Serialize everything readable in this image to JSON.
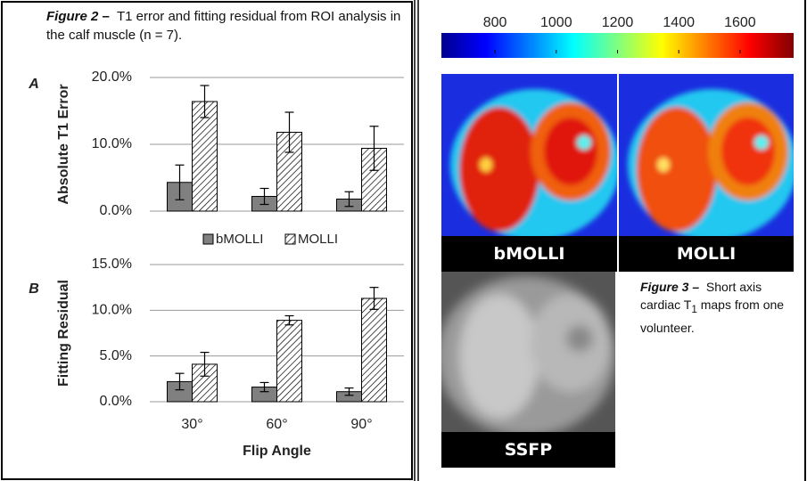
{
  "figure2": {
    "caption_label": "Figure 2 –",
    "caption_text": "T1 error and fitting residual from ROI analysis in the calf muscle (n = 7)."
  },
  "chart_data": [
    {
      "type": "bar",
      "panel": "A",
      "ylabel": "Absolute T1 Error",
      "categories": [
        null,
        null,
        null
      ],
      "series": [
        {
          "name": "bMOLLI",
          "color": "#808080",
          "hatch": false,
          "values": [
            4.3,
            2.2,
            1.8
          ],
          "errors": [
            2.6,
            1.2,
            1.1
          ]
        },
        {
          "name": "MOLLI",
          "color": "#ffffff",
          "hatch": true,
          "values": [
            16.4,
            11.8,
            9.4
          ],
          "errors": [
            2.4,
            3.0,
            3.3
          ]
        }
      ],
      "ylim": [
        0,
        20
      ],
      "yticks": [
        {
          "value": 0,
          "label": "0.0%"
        },
        {
          "value": 10,
          "label": "10.0%"
        },
        {
          "value": 20,
          "label": "20.0%"
        }
      ],
      "grid": true,
      "legend": "bottom"
    },
    {
      "type": "bar",
      "panel": "B",
      "ylabel": "Fitting Residual",
      "xlabel": "Flip Angle",
      "categories": [
        "30°",
        "60°",
        "90°"
      ],
      "series": [
        {
          "color": "#808080",
          "hatch": false,
          "values": [
            2.2,
            1.6,
            1.1
          ],
          "errors": [
            0.9,
            0.5,
            0.4
          ]
        },
        {
          "color": "#ffffff",
          "hatch": true,
          "values": [
            4.1,
            8.9,
            11.3
          ],
          "errors": [
            1.3,
            0.5,
            1.2
          ]
        }
      ],
      "ylim": [
        0,
        15
      ],
      "yticks": [
        {
          "value": 0,
          "label": "0.0%"
        },
        {
          "value": 5,
          "label": "5.0%"
        },
        {
          "value": 10,
          "label": "10.0%"
        },
        {
          "value": 15,
          "label": "15.0%"
        }
      ],
      "grid": true
    }
  ],
  "colorbar": {
    "clim": [
      625,
      1775
    ],
    "ticks": [
      800,
      1000,
      1200,
      1400,
      1600
    ]
  },
  "figure3": {
    "maps": [
      "bMOLLI",
      "MOLLI"
    ],
    "ssfp": "SSFP",
    "caption_label": "Figure 3 –",
    "caption_before": "Short axis cardiac T",
    "caption_sub": "1",
    "caption_after": "maps from one volunteer."
  }
}
